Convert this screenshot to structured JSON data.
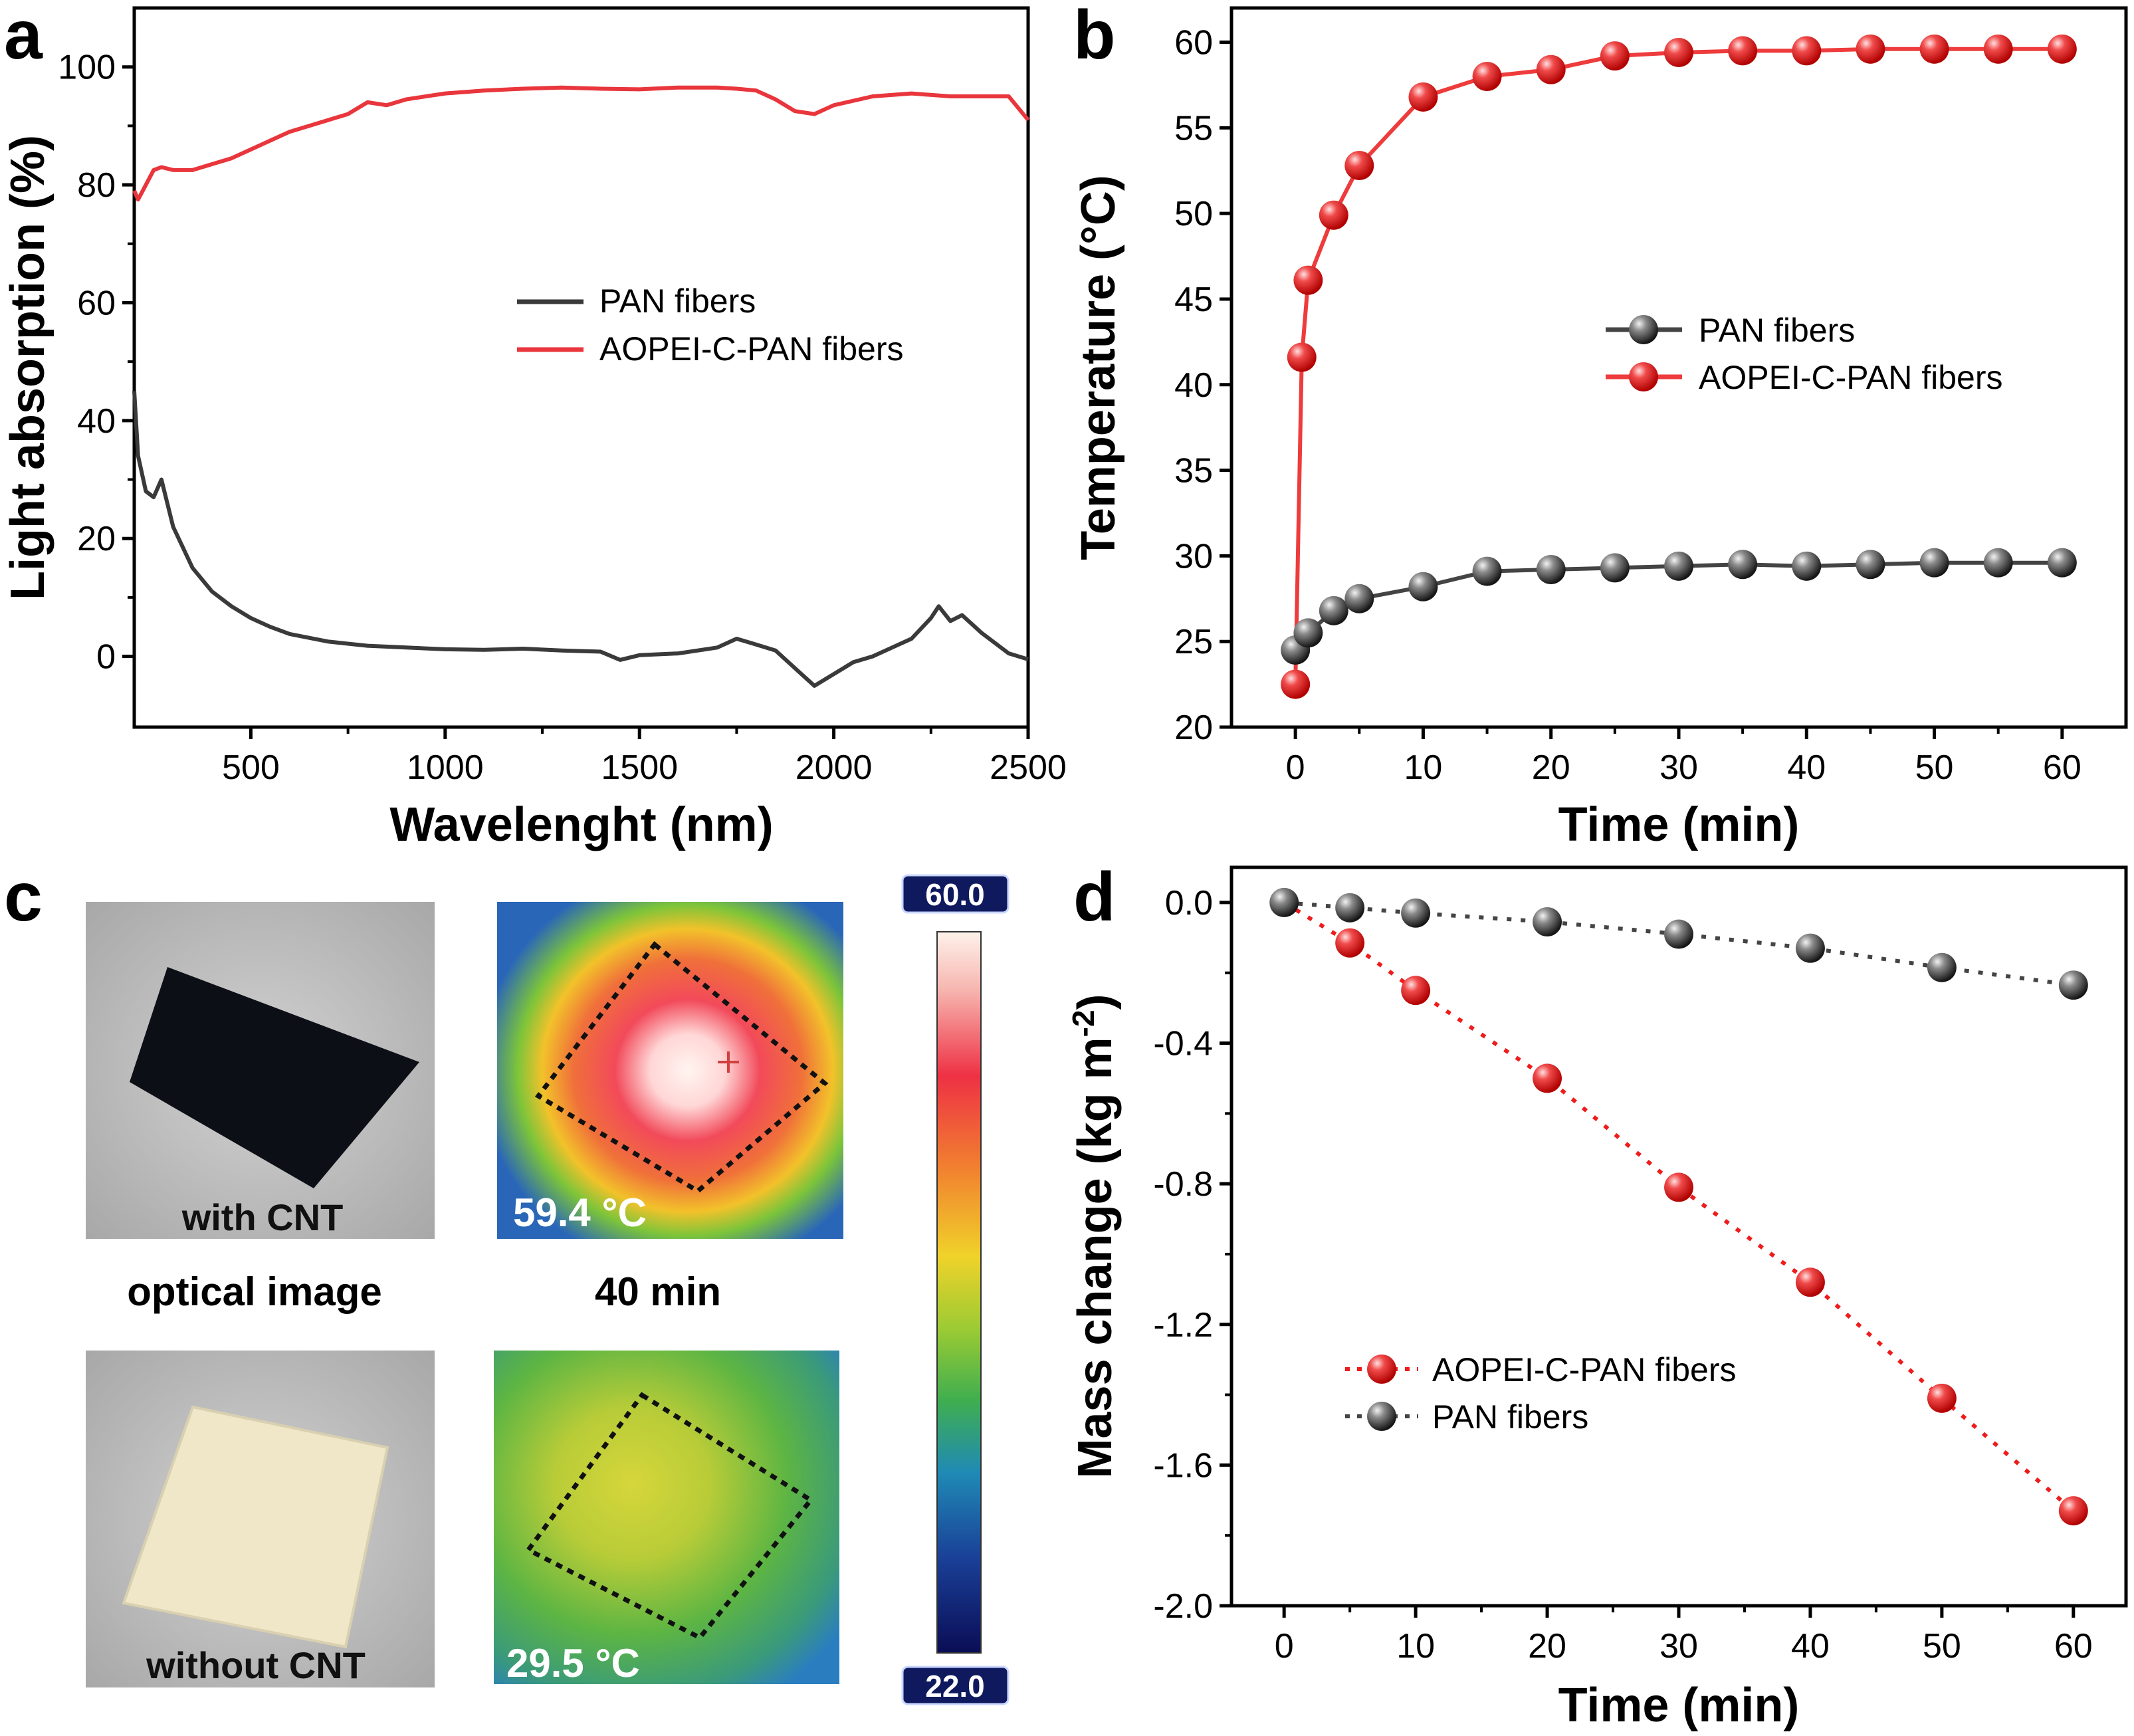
{
  "chart_data": [
    {
      "panel": "a",
      "type": "line",
      "xlabel": "Wavelenght (nm)",
      "ylabel": "Light absorption (%)",
      "xlim": [
        200,
        2500
      ],
      "ylim": [
        -12,
        110
      ],
      "xticks": [
        500,
        1000,
        1500,
        2000,
        2500
      ],
      "yticks": [
        0,
        20,
        40,
        60,
        80,
        100
      ],
      "series": [
        {
          "name": "PAN fibers",
          "color": "#3a3a3a",
          "x": [
            200,
            210,
            230,
            250,
            270,
            300,
            350,
            400,
            450,
            500,
            550,
            600,
            700,
            800,
            900,
            1000,
            1100,
            1200,
            1300,
            1400,
            1450,
            1500,
            1600,
            1700,
            1750,
            1800,
            1850,
            1900,
            1950,
            2000,
            2050,
            2100,
            2150,
            2200,
            2250,
            2270,
            2300,
            2330,
            2380,
            2450,
            2500
          ],
          "y": [
            45,
            34,
            28,
            27,
            30,
            22,
            15,
            11,
            8.5,
            6.5,
            5,
            3.8,
            2.5,
            1.8,
            1.5,
            1.2,
            1.1,
            1.3,
            1.0,
            0.8,
            -0.6,
            0.2,
            0.5,
            1.5,
            3.0,
            2.0,
            1.0,
            -2.0,
            -5.0,
            -3.0,
            -1.0,
            0.0,
            1.5,
            3.0,
            6.5,
            8.5,
            6.0,
            7.0,
            4.0,
            0.5,
            -0.5
          ]
        },
        {
          "name": "AOPEI-C-PAN fibers",
          "color": "#e8363c",
          "x": [
            200,
            210,
            230,
            250,
            270,
            300,
            350,
            400,
            450,
            500,
            550,
            600,
            650,
            700,
            750,
            800,
            850,
            900,
            1000,
            1100,
            1200,
            1300,
            1400,
            1500,
            1600,
            1700,
            1750,
            1800,
            1850,
            1900,
            1950,
            2000,
            2100,
            2200,
            2300,
            2400,
            2450,
            2500
          ],
          "y": [
            79,
            77.5,
            80,
            82.5,
            83,
            82.5,
            82.5,
            83.5,
            84.5,
            86,
            87.5,
            89,
            90,
            91,
            92,
            94,
            93.5,
            94.5,
            95.5,
            96,
            96.3,
            96.5,
            96.3,
            96.2,
            96.5,
            96.5,
            96.3,
            96,
            94.5,
            92.5,
            92,
            93.5,
            95,
            95.5,
            95,
            95,
            95,
            91
          ]
        }
      ],
      "legend": [
        "PAN fibers",
        "AOPEI-C-PAN fibers"
      ]
    },
    {
      "panel": "b",
      "type": "line",
      "xlabel": "Time (min)",
      "ylabel": "Temperature (°C)",
      "xlim": [
        -5,
        65
      ],
      "ylim": [
        20,
        62
      ],
      "xticks": [
        0,
        10,
        20,
        30,
        40,
        50,
        60
      ],
      "yticks": [
        20,
        25,
        30,
        35,
        40,
        45,
        50,
        55,
        60
      ],
      "series": [
        {
          "name": "PAN fibers",
          "color": "#444444",
          "x": [
            0,
            1,
            3,
            5,
            10,
            15,
            20,
            25,
            30,
            35,
            40,
            45,
            50,
            55,
            60
          ],
          "y": [
            24.5,
            25.5,
            26.8,
            27.5,
            28.2,
            29.1,
            29.2,
            29.3,
            29.4,
            29.5,
            29.4,
            29.5,
            29.6,
            29.6,
            29.6
          ]
        },
        {
          "name": "AOPEI-C-PAN fibers",
          "color": "#ee3b3b",
          "x": [
            0,
            0.5,
            1,
            3,
            5,
            10,
            15,
            20,
            25,
            30,
            35,
            40,
            45,
            50,
            55,
            60
          ],
          "y": [
            22.5,
            41.6,
            46.1,
            49.9,
            52.8,
            56.8,
            58.0,
            58.4,
            59.2,
            59.4,
            59.5,
            59.5,
            59.6,
            59.6,
            59.6,
            59.6
          ]
        }
      ],
      "legend": [
        "PAN fibers",
        "AOPEI-C-PAN fibers"
      ]
    },
    {
      "panel": "d",
      "type": "scatter",
      "xlabel": "Time (min)",
      "ylabel": "Mass change (kg m⁻²)",
      "xlim": [
        -4,
        64
      ],
      "ylim": [
        -2.0,
        0.1
      ],
      "xticks": [
        0,
        10,
        20,
        30,
        40,
        50,
        60
      ],
      "yticks": [
        0.0,
        -0.4,
        -0.8,
        -1.2,
        -1.6,
        -2.0
      ],
      "ytick_labels": [
        "0.0",
        "-0.4",
        "-0.8",
        "-1.2",
        "-1.6",
        "-2.0"
      ],
      "series": [
        {
          "name": "PAN fibers",
          "color": "#444444",
          "x": [
            0,
            5,
            10,
            20,
            30,
            40,
            50,
            60
          ],
          "y": [
            0.0,
            -0.015,
            -0.03,
            -0.055,
            -0.09,
            -0.13,
            -0.185,
            -0.235
          ]
        },
        {
          "name": "AOPEI-C-PAN fibers",
          "color": "#ee1c1c",
          "x": [
            5,
            10,
            20,
            30,
            40,
            50,
            60
          ],
          "y": [
            -0.115,
            -0.25,
            -0.5,
            -0.81,
            -1.08,
            -1.41,
            -1.73
          ]
        }
      ],
      "legend": [
        "AOPEI-C-PAN fibers",
        "PAN fibers"
      ]
    }
  ],
  "panel_c": {
    "photo_with_label": "with CNT",
    "photo_without_label": "without CNT",
    "caption_left": "optical image",
    "caption_right": "40 min",
    "thermal_top_temp": "59.4 °C",
    "thermal_bottom_temp": "29.5 °C",
    "scale_max": "60.0",
    "scale_min": "22.0"
  },
  "panel_letters": {
    "a": "a",
    "b": "b",
    "c": "c",
    "d": "d"
  }
}
